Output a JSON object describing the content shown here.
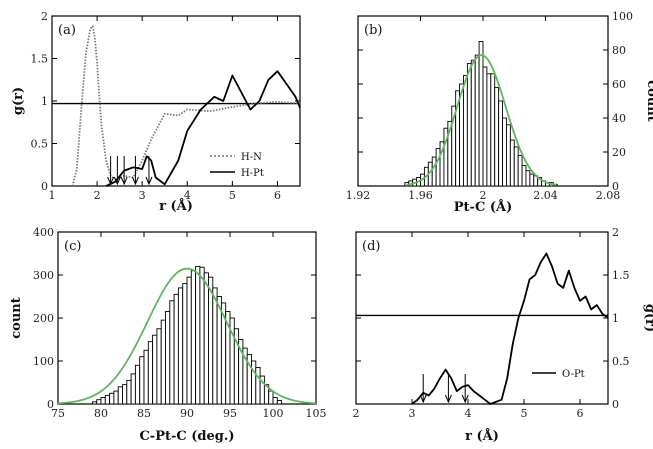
{
  "chart_data": [
    {
      "id": "a",
      "panel_label": "(a)",
      "type": "line",
      "xlabel": "r (Å)",
      "ylabel": "g(r)",
      "xlim": [
        1,
        6.5
      ],
      "ylim": [
        0,
        2
      ],
      "xticks": [
        1,
        2,
        3,
        4,
        5,
        6
      ],
      "yticks": [
        0,
        0.5,
        1,
        1.5,
        2
      ],
      "tick_labels_x": [
        "1",
        "2",
        "3",
        "4",
        "5",
        "6"
      ],
      "tick_labels_y": [
        "0",
        "0.5",
        "1",
        "1.5",
        "2"
      ],
      "hline": 0.97,
      "series": [
        {
          "name": "H-N",
          "style": "dotted",
          "color": "#777777",
          "x": [
            1.45,
            1.55,
            1.65,
            1.75,
            1.85,
            1.9,
            1.95,
            2.0,
            2.05,
            2.1,
            2.2,
            2.3,
            2.4,
            2.6,
            2.8,
            3.0,
            3.2,
            3.5,
            3.8,
            4.0,
            4.5,
            5.0,
            5.5,
            6.0,
            6.5
          ],
          "y": [
            0.0,
            0.2,
            0.9,
            1.55,
            1.85,
            1.88,
            1.75,
            1.45,
            1.05,
            0.7,
            0.3,
            0.12,
            0.08,
            0.12,
            0.1,
            0.3,
            0.55,
            0.85,
            0.83,
            0.9,
            0.88,
            0.93,
            0.97,
            0.99,
            0.97
          ]
        },
        {
          "name": "H-Pt",
          "style": "solid",
          "color": "#000000",
          "x": [
            2.2,
            2.4,
            2.6,
            2.8,
            3.0,
            3.1,
            3.2,
            3.3,
            3.5,
            3.8,
            4.0,
            4.3,
            4.6,
            4.8,
            5.0,
            5.2,
            5.4,
            5.6,
            5.8,
            6.0,
            6.2,
            6.4,
            6.5
          ],
          "y": [
            0.0,
            0.05,
            0.18,
            0.22,
            0.2,
            0.35,
            0.3,
            0.1,
            0.02,
            0.3,
            0.65,
            0.9,
            1.05,
            1.0,
            1.3,
            1.1,
            0.9,
            1.0,
            1.25,
            1.35,
            1.2,
            1.05,
            0.92
          ]
        }
      ],
      "arrows_x": [
        2.3,
        2.45,
        2.6,
        2.85,
        3.15
      ],
      "legend": "bottom-right"
    },
    {
      "id": "b",
      "panel_label": "(b)",
      "type": "bar",
      "xlabel": "Pt-C (Å)",
      "ylabel": "count",
      "xlim": [
        1.92,
        2.08
      ],
      "ylim": [
        0,
        100
      ],
      "xticks": [
        1.92,
        1.96,
        2.0,
        2.04,
        2.08
      ],
      "yticks": [
        0,
        20,
        40,
        60,
        80,
        100
      ],
      "tick_labels_x": [
        "1.92",
        "1.96",
        "2",
        "2.04",
        "2.08"
      ],
      "tick_labels_y": [
        "0",
        "20",
        "40",
        "60",
        "80",
        "100"
      ],
      "bin_start": 1.95,
      "bin_width": 0.0025,
      "values": [
        2,
        3,
        4,
        5,
        7,
        11,
        14,
        17,
        22,
        26,
        34,
        38,
        47,
        56,
        60,
        65,
        72,
        74,
        77,
        85,
        70,
        66,
        66,
        58,
        50,
        40,
        36,
        27,
        23,
        18,
        12,
        9,
        7,
        6,
        5,
        3,
        2,
        2,
        1
      ],
      "fit": {
        "mu": 1.999,
        "sigma": 0.0155,
        "amplitude": 77,
        "color": "#5cb85c"
      },
      "y_axis_side": "right"
    },
    {
      "id": "c",
      "panel_label": "(c)",
      "type": "bar",
      "xlabel": "C-Pt-C (deg.)",
      "ylabel": "count",
      "xlim": [
        75,
        105
      ],
      "ylim": [
        0,
        400
      ],
      "xticks": [
        75,
        80,
        85,
        90,
        95,
        100,
        105
      ],
      "yticks": [
        0,
        100,
        200,
        300,
        400
      ],
      "tick_labels_x": [
        "75",
        "80",
        "85",
        "90",
        "95",
        "100",
        "105"
      ],
      "tick_labels_y": [
        "0",
        "100",
        "200",
        "300",
        "400"
      ],
      "bin_start": 79,
      "bin_width": 0.5,
      "values": [
        5,
        10,
        15,
        20,
        25,
        30,
        40,
        45,
        55,
        70,
        90,
        110,
        125,
        145,
        160,
        175,
        195,
        215,
        240,
        255,
        270,
        280,
        295,
        310,
        320,
        318,
        305,
        295,
        270,
        250,
        235,
        215,
        200,
        175,
        150,
        130,
        115,
        100,
        85,
        65,
        45,
        30,
        15,
        8
      ],
      "fit": {
        "mu": 90,
        "sigma": 4.6,
        "amplitude": 315,
        "color": "#5cb85c"
      },
      "y_axis_side": "left"
    },
    {
      "id": "d",
      "panel_label": "(d)",
      "type": "line",
      "xlabel": "r (Å)",
      "ylabel": "g(r)",
      "xlim": [
        2,
        6.5
      ],
      "ylim": [
        0,
        2
      ],
      "xticks": [
        2,
        3,
        4,
        5,
        6
      ],
      "yticks": [
        0,
        0.5,
        1,
        1.5,
        2
      ],
      "tick_labels_x": [
        "2",
        "3",
        "4",
        "5",
        "6"
      ],
      "tick_labels_y": [
        "0",
        "0.5",
        "1",
        "1.5",
        "2"
      ],
      "hline": 1.03,
      "series": [
        {
          "name": "O-Pt",
          "style": "solid",
          "color": "#000000",
          "x": [
            3.0,
            3.1,
            3.2,
            3.3,
            3.4,
            3.5,
            3.6,
            3.7,
            3.8,
            3.9,
            4.0,
            4.1,
            4.2,
            4.3,
            4.4,
            4.6,
            4.7,
            4.8,
            4.9,
            5.0,
            5.1,
            5.2,
            5.3,
            5.4,
            5.5,
            5.6,
            5.7,
            5.8,
            5.9,
            6.0,
            6.1,
            6.2,
            6.3,
            6.4,
            6.5
          ],
          "y": [
            0.0,
            0.05,
            0.13,
            0.1,
            0.18,
            0.3,
            0.4,
            0.3,
            0.15,
            0.2,
            0.22,
            0.15,
            0.1,
            0.05,
            0.0,
            0.05,
            0.3,
            0.7,
            1.0,
            1.2,
            1.45,
            1.5,
            1.65,
            1.75,
            1.6,
            1.4,
            1.35,
            1.55,
            1.35,
            1.2,
            1.25,
            1.1,
            1.15,
            1.05,
            1.0
          ]
        }
      ],
      "arrows_x": [
        3.2,
        3.65,
        3.95
      ],
      "legend": "bottom-right",
      "y_axis_side": "right"
    }
  ]
}
